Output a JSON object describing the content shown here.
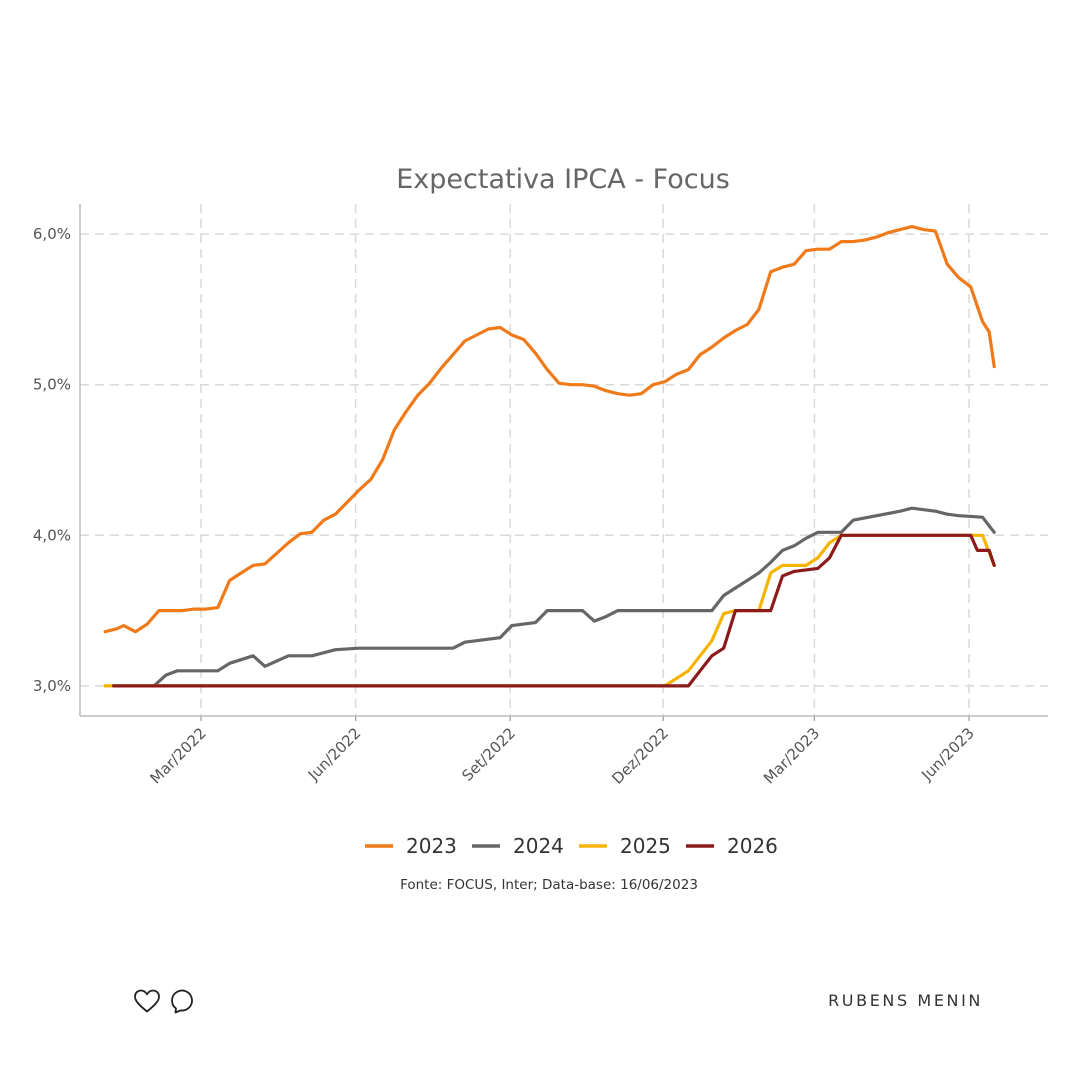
{
  "chart_data": {
    "type": "line",
    "title": "Expectativa IPCA - Focus",
    "xlabel": "",
    "ylabel": "",
    "x_range": [
      "2022-01-03",
      "2023-06-16"
    ],
    "ylim": [
      2.8,
      6.2
    ],
    "y_ticks": [
      {
        "value": 3.0,
        "label": "3,0%"
      },
      {
        "value": 4.0,
        "label": "4,0%"
      },
      {
        "value": 5.0,
        "label": "5,0%"
      },
      {
        "value": 6.0,
        "label": "6,0%"
      }
    ],
    "x_ticks": [
      {
        "date": "2022-03-01",
        "label": "Mar/2022"
      },
      {
        "date": "2022-06-01",
        "label": "Jun/2022"
      },
      {
        "date": "2022-09-01",
        "label": "Set/2022"
      },
      {
        "date": "2022-12-01",
        "label": "Dez/2022"
      },
      {
        "date": "2023-03-01",
        "label": "Mar/2023"
      },
      {
        "date": "2023-06-01",
        "label": "Jun/2023"
      }
    ],
    "grid": true,
    "legend": "bottom",
    "source": "Fonte: FOCUS, Inter; Data-base: 16/06/2023",
    "series": [
      {
        "name": "2023",
        "color": "#f07a1a",
        "points": [
          [
            "2022-01-03",
            3.36
          ],
          [
            "2022-01-10",
            3.38
          ],
          [
            "2022-01-14",
            3.4
          ],
          [
            "2022-01-21",
            3.36
          ],
          [
            "2022-01-28",
            3.41
          ],
          [
            "2022-02-04",
            3.5
          ],
          [
            "2022-02-11",
            3.5
          ],
          [
            "2022-02-18",
            3.5
          ],
          [
            "2022-02-25",
            3.51
          ],
          [
            "2022-03-04",
            3.51
          ],
          [
            "2022-03-11",
            3.52
          ],
          [
            "2022-03-18",
            3.7
          ],
          [
            "2022-03-25",
            3.75
          ],
          [
            "2022-04-01",
            3.8
          ],
          [
            "2022-04-08",
            3.81
          ],
          [
            "2022-04-15",
            3.88
          ],
          [
            "2022-04-22",
            3.95
          ],
          [
            "2022-04-29",
            4.01
          ],
          [
            "2022-05-06",
            4.02
          ],
          [
            "2022-05-13",
            4.1
          ],
          [
            "2022-05-20",
            4.14
          ],
          [
            "2022-05-27",
            4.22
          ],
          [
            "2022-06-03",
            4.3
          ],
          [
            "2022-06-10",
            4.37
          ],
          [
            "2022-06-17",
            4.5
          ],
          [
            "2022-06-24",
            4.7
          ],
          [
            "2022-07-01",
            4.82
          ],
          [
            "2022-07-08",
            4.93
          ],
          [
            "2022-07-15",
            5.01
          ],
          [
            "2022-07-22",
            5.11
          ],
          [
            "2022-07-29",
            5.2
          ],
          [
            "2022-08-05",
            5.29
          ],
          [
            "2022-08-12",
            5.33
          ],
          [
            "2022-08-19",
            5.37
          ],
          [
            "2022-08-26",
            5.38
          ],
          [
            "2022-09-02",
            5.33
          ],
          [
            "2022-09-09",
            5.3
          ],
          [
            "2022-09-16",
            5.21
          ],
          [
            "2022-09-23",
            5.1
          ],
          [
            "2022-09-30",
            5.01
          ],
          [
            "2022-10-07",
            5.0
          ],
          [
            "2022-10-14",
            5.0
          ],
          [
            "2022-10-21",
            4.99
          ],
          [
            "2022-10-28",
            4.96
          ],
          [
            "2022-11-04",
            4.94
          ],
          [
            "2022-11-11",
            4.93
          ],
          [
            "2022-11-18",
            4.94
          ],
          [
            "2022-11-25",
            5.0
          ],
          [
            "2022-12-02",
            5.02
          ],
          [
            "2022-12-09",
            5.07
          ],
          [
            "2022-12-16",
            5.1
          ],
          [
            "2022-12-23",
            5.2
          ],
          [
            "2022-12-30",
            5.25
          ],
          [
            "2023-01-06",
            5.31
          ],
          [
            "2023-01-13",
            5.36
          ],
          [
            "2023-01-20",
            5.4
          ],
          [
            "2023-01-27",
            5.5
          ],
          [
            "2023-02-03",
            5.75
          ],
          [
            "2023-02-10",
            5.78
          ],
          [
            "2023-02-17",
            5.8
          ],
          [
            "2023-02-24",
            5.89
          ],
          [
            "2023-03-03",
            5.9
          ],
          [
            "2023-03-10",
            5.9
          ],
          [
            "2023-03-17",
            5.95
          ],
          [
            "2023-03-24",
            5.95
          ],
          [
            "2023-03-31",
            5.96
          ],
          [
            "2023-04-07",
            5.98
          ],
          [
            "2023-04-14",
            6.01
          ],
          [
            "2023-04-21",
            6.03
          ],
          [
            "2023-04-28",
            6.05
          ],
          [
            "2023-05-05",
            6.03
          ],
          [
            "2023-05-12",
            6.02
          ],
          [
            "2023-05-19",
            5.8
          ],
          [
            "2023-05-26",
            5.71
          ],
          [
            "2023-06-02",
            5.65
          ],
          [
            "2023-06-09",
            5.42
          ],
          [
            "2023-06-13",
            5.35
          ],
          [
            "2023-06-16",
            5.12
          ]
        ]
      },
      {
        "name": "2024",
        "color": "#666666",
        "points": [
          [
            "2022-02-01",
            3.0
          ],
          [
            "2022-02-08",
            3.07
          ],
          [
            "2022-02-15",
            3.1
          ],
          [
            "2022-03-11",
            3.1
          ],
          [
            "2022-03-18",
            3.15
          ],
          [
            "2022-04-01",
            3.2
          ],
          [
            "2022-04-08",
            3.13
          ],
          [
            "2022-04-22",
            3.2
          ],
          [
            "2022-05-06",
            3.2
          ],
          [
            "2022-05-20",
            3.24
          ],
          [
            "2022-06-03",
            3.25
          ],
          [
            "2022-07-29",
            3.25
          ],
          [
            "2022-08-05",
            3.29
          ],
          [
            "2022-08-26",
            3.32
          ],
          [
            "2022-09-02",
            3.4
          ],
          [
            "2022-09-16",
            3.42
          ],
          [
            "2022-09-23",
            3.5
          ],
          [
            "2022-10-14",
            3.5
          ],
          [
            "2022-10-21",
            3.43
          ],
          [
            "2022-10-28",
            3.46
          ],
          [
            "2022-11-04",
            3.5
          ],
          [
            "2022-12-30",
            3.5
          ],
          [
            "2023-01-06",
            3.6
          ],
          [
            "2023-01-13",
            3.65
          ],
          [
            "2023-01-20",
            3.7
          ],
          [
            "2023-01-27",
            3.75
          ],
          [
            "2023-02-03",
            3.82
          ],
          [
            "2023-02-10",
            3.9
          ],
          [
            "2023-02-17",
            3.93
          ],
          [
            "2023-02-24",
            3.98
          ],
          [
            "2023-03-03",
            4.02
          ],
          [
            "2023-03-17",
            4.02
          ],
          [
            "2023-03-24",
            4.1
          ],
          [
            "2023-04-07",
            4.13
          ],
          [
            "2023-04-21",
            4.16
          ],
          [
            "2023-04-28",
            4.18
          ],
          [
            "2023-05-12",
            4.16
          ],
          [
            "2023-05-19",
            4.14
          ],
          [
            "2023-05-26",
            4.13
          ],
          [
            "2023-06-09",
            4.12
          ],
          [
            "2023-06-16",
            4.02
          ]
        ]
      },
      {
        "name": "2025",
        "color": "#f5b400",
        "points": [
          [
            "2022-01-03",
            3.0
          ],
          [
            "2022-12-02",
            3.0
          ],
          [
            "2022-12-09",
            3.05
          ],
          [
            "2022-12-16",
            3.1
          ],
          [
            "2022-12-23",
            3.2
          ],
          [
            "2022-12-30",
            3.3
          ],
          [
            "2023-01-06",
            3.48
          ],
          [
            "2023-01-13",
            3.5
          ],
          [
            "2023-01-27",
            3.5
          ],
          [
            "2023-02-03",
            3.75
          ],
          [
            "2023-02-10",
            3.8
          ],
          [
            "2023-02-24",
            3.8
          ],
          [
            "2023-03-03",
            3.85
          ],
          [
            "2023-03-10",
            3.95
          ],
          [
            "2023-03-17",
            4.0
          ],
          [
            "2023-06-09",
            4.0
          ],
          [
            "2023-06-16",
            3.8
          ]
        ]
      },
      {
        "name": "2026",
        "color": "#8b1a1a",
        "points": [
          [
            "2022-01-08",
            3.0
          ],
          [
            "2022-12-16",
            3.0
          ],
          [
            "2022-12-23",
            3.1
          ],
          [
            "2022-12-30",
            3.2
          ],
          [
            "2023-01-06",
            3.25
          ],
          [
            "2023-01-13",
            3.5
          ],
          [
            "2023-01-27",
            3.5
          ],
          [
            "2023-02-03",
            3.5
          ],
          [
            "2023-02-10",
            3.73
          ],
          [
            "2023-02-17",
            3.76
          ],
          [
            "2023-03-03",
            3.78
          ],
          [
            "2023-03-10",
            3.85
          ],
          [
            "2023-03-17",
            4.0
          ],
          [
            "2023-06-02",
            4.0
          ],
          [
            "2023-06-06",
            3.9
          ],
          [
            "2023-06-13",
            3.9
          ],
          [
            "2023-06-16",
            3.8
          ]
        ]
      }
    ]
  },
  "footer": {
    "brand": "RUBENS MENIN",
    "like_icon": "heart-icon",
    "comment_icon": "comment-icon"
  }
}
